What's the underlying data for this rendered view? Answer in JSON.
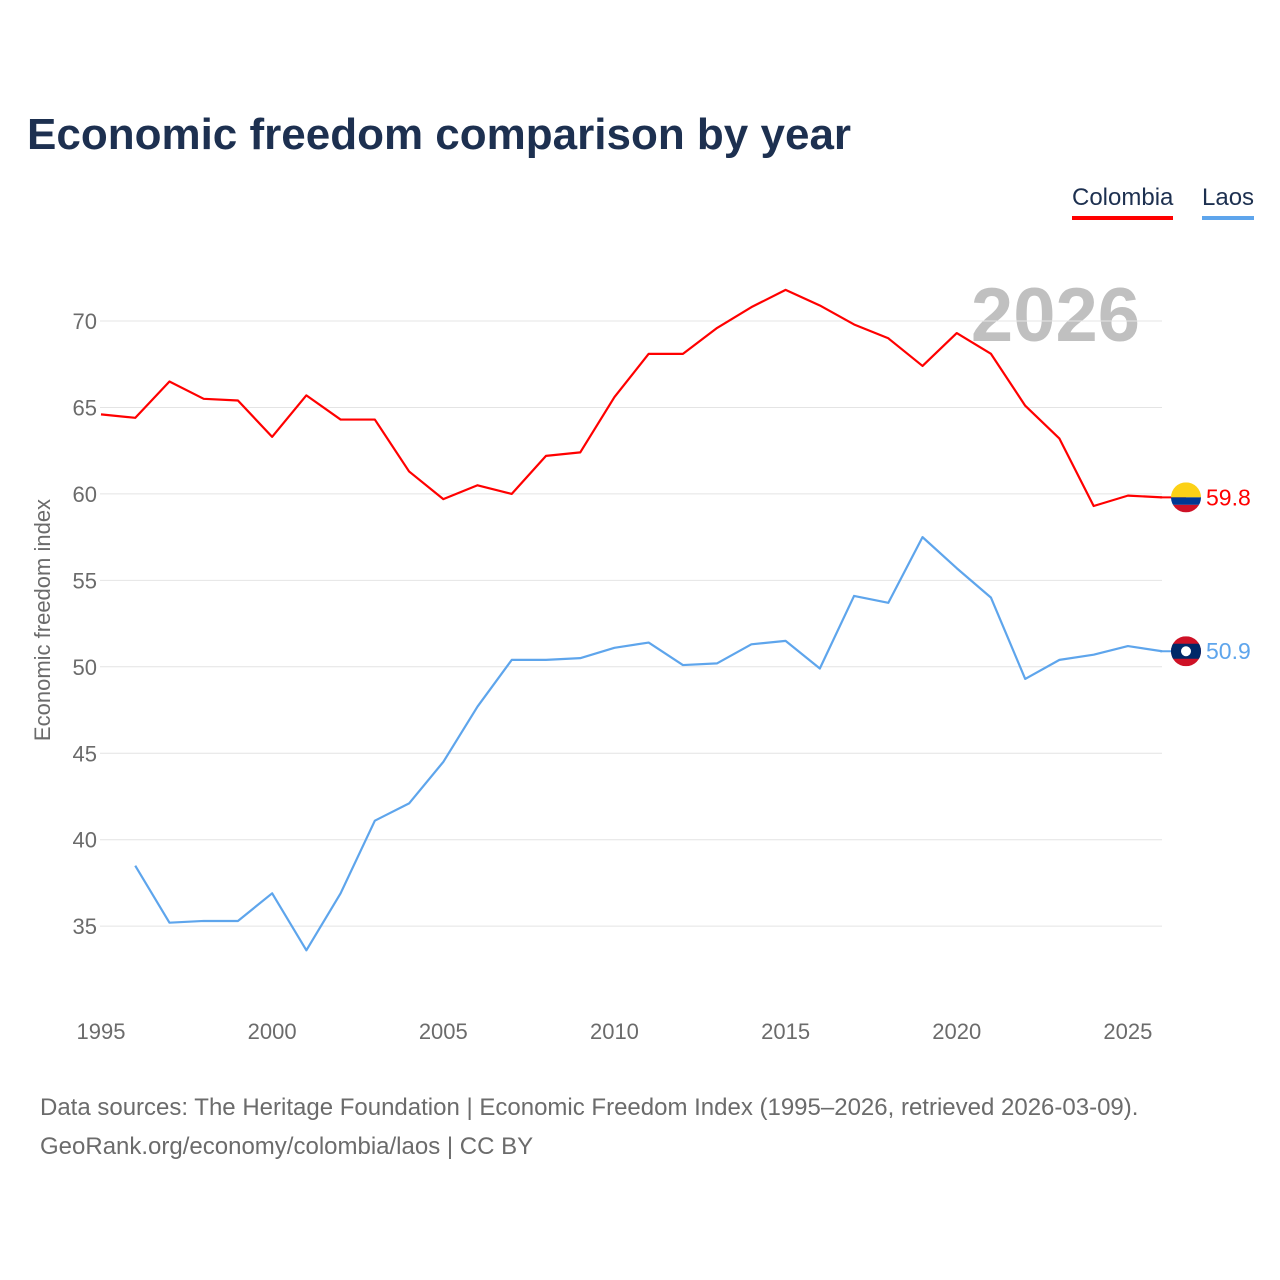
{
  "chart_data": {
    "type": "line",
    "title": "Economic freedom comparison by year",
    "xlabel": "",
    "ylabel": "Economic freedom index",
    "xlim": [
      1995,
      2026
    ],
    "ylim": [
      30,
      72
    ],
    "yticks": [
      35,
      40,
      45,
      50,
      55,
      60,
      65,
      70
    ],
    "xticks": [
      1995,
      2000,
      2005,
      2010,
      2015,
      2020,
      2025
    ],
    "grid": true,
    "legend_position": "top-right",
    "year_watermark": "2026",
    "series": [
      {
        "name": "Colombia",
        "color": "#ff0000",
        "end_label": "59.8",
        "x": [
          1995,
          1996,
          1997,
          1998,
          1999,
          2000,
          2001,
          2002,
          2003,
          2004,
          2005,
          2006,
          2007,
          2008,
          2009,
          2010,
          2011,
          2012,
          2013,
          2014,
          2015,
          2016,
          2017,
          2018,
          2019,
          2020,
          2021,
          2022,
          2023,
          2024,
          2025,
          2026
        ],
        "values": [
          64.6,
          64.4,
          66.5,
          65.5,
          65.4,
          63.3,
          65.7,
          64.3,
          64.3,
          61.3,
          59.7,
          60.5,
          60.0,
          62.2,
          62.4,
          65.6,
          68.1,
          68.1,
          69.6,
          70.8,
          71.8,
          70.9,
          69.8,
          69.0,
          67.4,
          69.3,
          68.1,
          65.1,
          63.2,
          59.3,
          59.9,
          59.8
        ]
      },
      {
        "name": "Laos",
        "color": "#5ea5ec",
        "end_label": "50.9",
        "x": [
          1996,
          1997,
          1998,
          1999,
          2000,
          2001,
          2002,
          2003,
          2004,
          2005,
          2006,
          2007,
          2008,
          2009,
          2010,
          2011,
          2012,
          2013,
          2014,
          2015,
          2016,
          2017,
          2018,
          2019,
          2020,
          2021,
          2022,
          2023,
          2024,
          2025,
          2026
        ],
        "values": [
          38.5,
          35.2,
          35.3,
          35.3,
          36.9,
          33.6,
          36.9,
          41.1,
          42.1,
          44.5,
          47.7,
          50.4,
          50.4,
          50.5,
          51.1,
          51.4,
          50.1,
          50.2,
          51.3,
          51.5,
          49.9,
          54.1,
          53.7,
          57.5,
          55.7,
          54.0,
          49.3,
          50.4,
          50.7,
          51.2,
          50.9
        ]
      }
    ]
  },
  "source": {
    "line1": "Data sources: The Heritage Foundation | Economic Freedom Index (1995–2026, retrieved 2026-03-09).",
    "line2": "GeoRank.org/economy/colombia/laos | CC BY"
  }
}
